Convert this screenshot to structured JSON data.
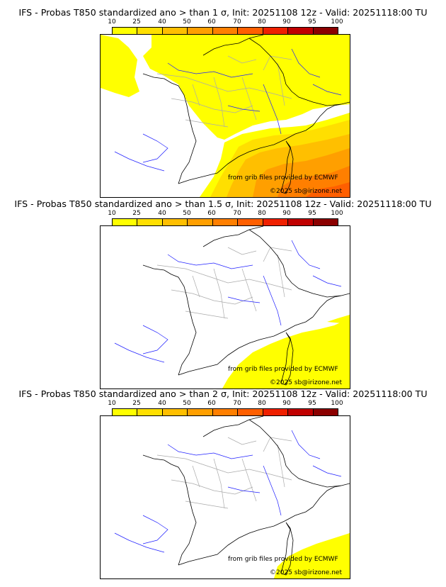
{
  "colorbar": {
    "ticks": [
      "10",
      "25",
      "40",
      "50",
      "60",
      "70",
      "80",
      "90",
      "95",
      "100"
    ],
    "colors": [
      "#ffff00",
      "#ffdf00",
      "#ffbf00",
      "#ff9f00",
      "#ff7f00",
      "#ff5f00",
      "#ef2000",
      "#c00000",
      "#8b0000"
    ]
  },
  "panels": [
    {
      "title": "IFS - Probas T850  standardized ano > than 1 σ, Init: 20251108 12z - Valid: 20251118:00 TU",
      "credit_data": "from grib files provided by ECMWF",
      "credit_copy": "©2025 sb@irizone.net"
    },
    {
      "title": "IFS - Probas T850  standardized ano > than 1.5 σ, Init: 20251108 12z - Valid: 20251118:00 TU",
      "credit_data": "from grib files provided by ECMWF",
      "credit_copy": "©2025 sb@irizone.net"
    },
    {
      "title": "IFS - Probas T850  standardized ano > than 2 σ, Init: 20251108 12z - Valid: 20251118:00 TU",
      "credit_data": "from grib files provided by ECMWF",
      "credit_copy": "©2025 sb@irizone.net"
    }
  ]
}
